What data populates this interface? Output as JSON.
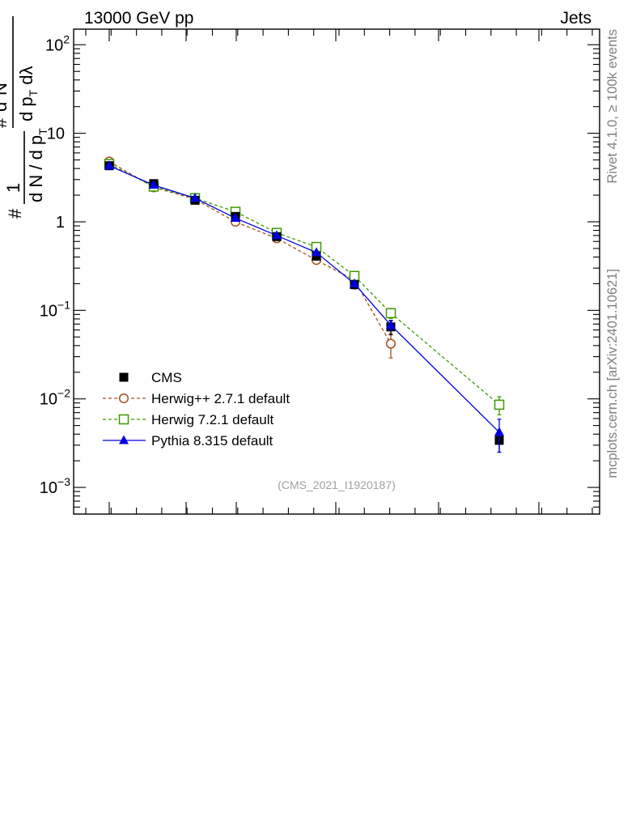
{
  "header": {
    "energy_label": "13000 GeV pp",
    "category_label": "Jets"
  },
  "side_labels": {
    "rivet": "Rivet 4.1.0, ≥ 100k events",
    "source": "mcplots.cern.ch [arXiv:2401.10621]"
  },
  "analysis_label": "(CMS_2021_I1920187)",
  "colors": {
    "CMS": "#000000",
    "Herwig++ 2.7.1 default": "#a0521e",
    "Herwig 7.2.1 default": "#3c9a00",
    "Pythia 8.315 default": "#0000dd"
  },
  "chart_data": {
    "type": "line",
    "yscale": "log",
    "ylim": [
      0.0005,
      150
    ],
    "ytick_labels": [
      "10^-3",
      "10^-2",
      "10^-1",
      "1",
      "10",
      "10^2"
    ],
    "ylabel": "# 1/(dN / d p_T #) d^2N/(d p_T dλ)",
    "x_bins": [
      1,
      2,
      3,
      4,
      5,
      6,
      7,
      8,
      9
    ],
    "series": [
      {
        "name": "CMS",
        "marker": "filled-square",
        "line": "none",
        "x": [
          1,
          2,
          3,
          4,
          5,
          6,
          7,
          8,
          9
        ],
        "values": [
          4.3,
          2.7,
          1.75,
          1.15,
          0.68,
          0.41,
          0.195,
          0.065,
          0.0034
        ],
        "errors": [
          0.3,
          0.2,
          0.12,
          0.1,
          0.06,
          0.04,
          0.02,
          0.012,
          0.0009
        ]
      },
      {
        "name": "Herwig++ 2.7.1 default",
        "marker": "open-circle",
        "line": "dashed",
        "x": [
          1,
          2,
          3,
          4,
          5,
          6,
          7,
          8
        ],
        "values": [
          4.8,
          2.45,
          1.8,
          1.0,
          0.65,
          0.37,
          0.22,
          0.042
        ],
        "errors": [
          0.2,
          0.1,
          0.08,
          0.05,
          0.03,
          0.02,
          0.015,
          0.013
        ]
      },
      {
        "name": "Herwig 7.2.1 default",
        "marker": "open-square",
        "line": "dashed",
        "x": [
          1,
          2,
          3,
          4,
          5,
          6,
          7,
          8,
          9
        ],
        "values": [
          4.5,
          2.5,
          1.85,
          1.3,
          0.75,
          0.52,
          0.245,
          0.093,
          0.0086
        ],
        "errors": [
          0.15,
          0.08,
          0.06,
          0.05,
          0.03,
          0.02,
          0.012,
          0.012,
          0.002
        ]
      },
      {
        "name": "Pythia 8.315 default",
        "marker": "filled-triangle",
        "line": "solid",
        "x": [
          1,
          2,
          3,
          4,
          5,
          6,
          7,
          8,
          9
        ],
        "values": [
          4.3,
          2.6,
          1.85,
          1.1,
          0.7,
          0.45,
          0.2,
          0.068,
          0.0042
        ],
        "errors": [
          0.15,
          0.08,
          0.06,
          0.05,
          0.03,
          0.02,
          0.01,
          0.008,
          0.0017
        ]
      }
    ]
  }
}
